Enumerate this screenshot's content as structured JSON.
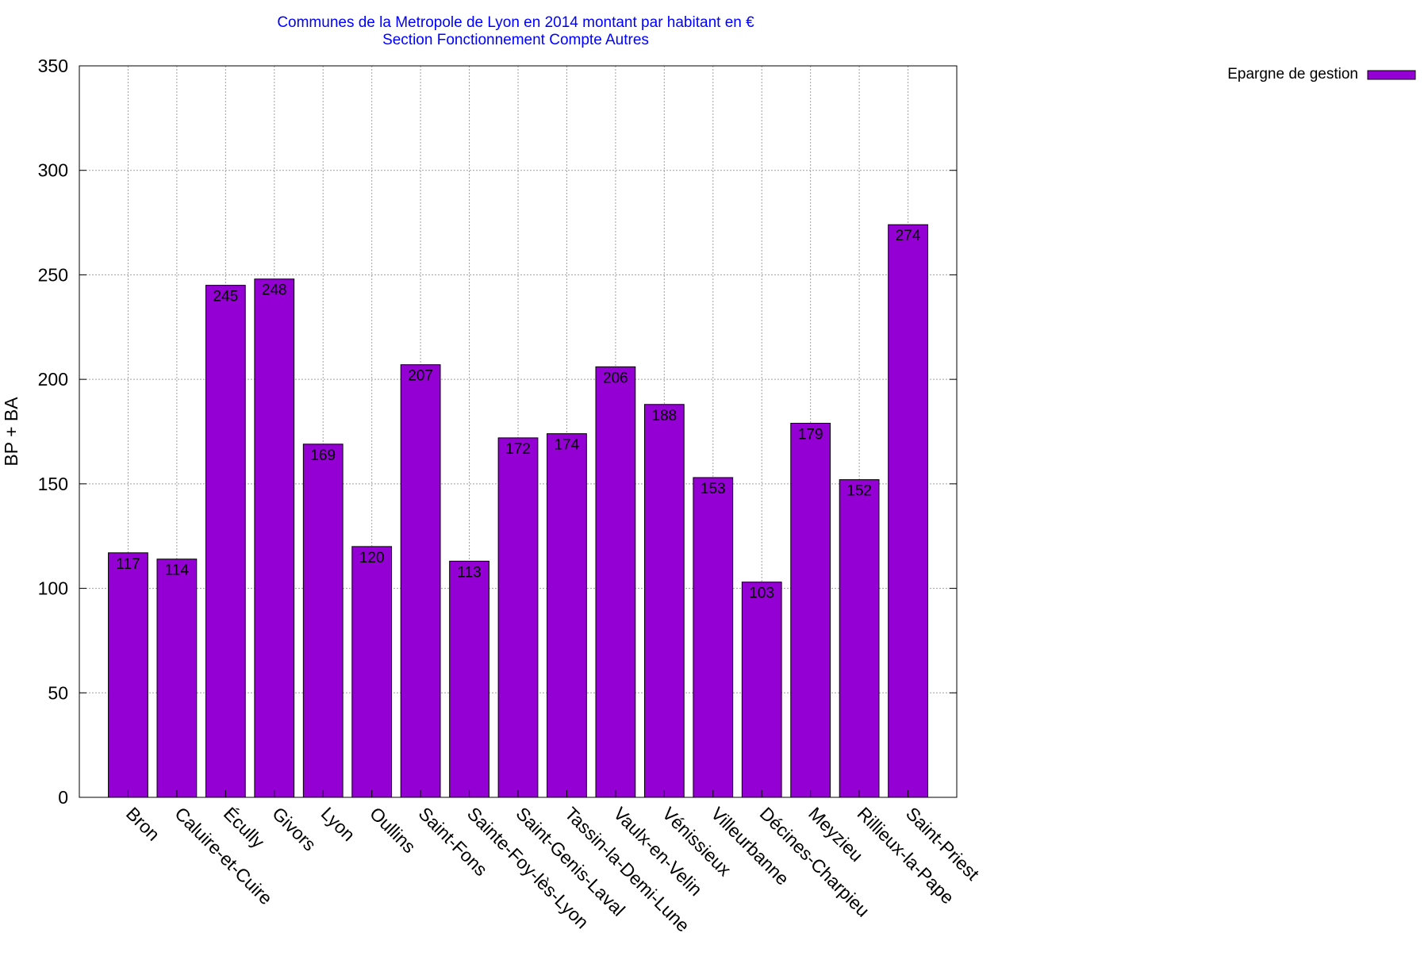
{
  "chart_data": {
    "type": "bar",
    "title": "Communes de la Metropole de Lyon en 2014 montant par habitant en €",
    "subtitle": "Section Fonctionnement Compte Autres",
    "xlabel": "",
    "ylabel": "BP + BA",
    "ylim": [
      0,
      350
    ],
    "yticks": [
      0,
      50,
      100,
      150,
      200,
      250,
      300,
      350
    ],
    "grid": true,
    "legend_position": "top-right",
    "categories": [
      "Bron",
      "Caluire-et-Cuire",
      "Écully",
      "Givors",
      "Lyon",
      "Oullins",
      "Saint-Fons",
      "Sainte-Foy-lès-Lyon",
      "Saint-Genis-Laval",
      "Tassin-la-Demi-Lune",
      "Vaulx-en-Velin",
      "Vénissieux",
      "Villeurbanne",
      "Décines-Charpieu",
      "Meyzieu",
      "Rillieux-la-Pape",
      "Saint-Priest"
    ],
    "series": [
      {
        "name": "Epargne de gestion",
        "color": "#9400d3",
        "values": [
          117,
          114,
          245,
          248,
          169,
          120,
          207,
          113,
          172,
          174,
          206,
          188,
          153,
          103,
          179,
          152,
          274
        ]
      }
    ]
  }
}
